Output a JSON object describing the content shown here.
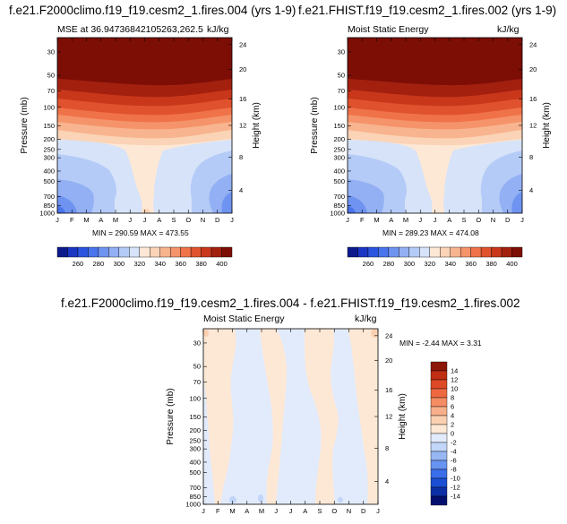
{
  "colors": {
    "scale_top": [
      "#0c1a8c",
      "#1b36c2",
      "#2b55e0",
      "#4a74ec",
      "#6f93f0",
      "#93b0f4",
      "#b5cbf7",
      "#d6e3f9",
      "#fde8d6",
      "#fbd3b6",
      "#f8b48e",
      "#f5936a",
      "#f07249",
      "#e0522e",
      "#c9371b",
      "#a3200f",
      "#7d0e06"
    ],
    "scale_diff": [
      "#040f6d",
      "#0c2fa6",
      "#1a4fd4",
      "#3a6eea",
      "#6893f0",
      "#97b6f4",
      "#c1d6f9",
      "#e2ebfb",
      "#fde8d6",
      "#fbd0b1",
      "#f8b08a",
      "#f48d64",
      "#ee6941",
      "#dd4a25",
      "#c02e13",
      "#8c1608"
    ]
  },
  "panels": [
    {
      "id": "left",
      "title": "f.e21.F2000climo.f19_f19.cesm2_1.fires.004 (yrs 1-9)",
      "subtitle_left": "MSE at 36.94736842105263,262.5",
      "subtitle_right": "kJ/kg",
      "minmax": "MIN = 290.59  MAX = 473.55"
    },
    {
      "id": "right",
      "title": "f.e21.FHIST.f19_f19.cesm2_1.fires.002 (yrs 1-9)",
      "subtitle_left": "Moist Static Energy",
      "subtitle_right": "kJ/kg",
      "minmax": "MIN = 289.23  MAX = 474.08"
    },
    {
      "id": "diff",
      "title": "f.e21.F2000climo.f19_f19.cesm2_1.fires.004 - f.e21.FHIST.f19_f19.cesm2_1.fires.002",
      "subtitle_left": "Moist Static Energy",
      "subtitle_right": "kJ/kg",
      "minmax": "MIN =  -2.44  MAX =   3.31"
    }
  ],
  "chart_data": [
    {
      "type": "heatmap",
      "title": "f.e21.F2000climo.f19_f19.cesm2_1.fires.004 (yrs 1-9)",
      "subtitle": "MSE at 36.94736842105263,262.5",
      "units": "kJ/kg",
      "x_ticks": [
        "J",
        "F",
        "M",
        "A",
        "M",
        "J",
        "J",
        "A",
        "S",
        "O",
        "N",
        "D",
        "J"
      ],
      "y_ticks": [
        "30",
        "50",
        "70",
        "100",
        "150",
        "200",
        "250",
        "300",
        "400",
        "500",
        "700",
        "850",
        "1000"
      ],
      "y2_ticks": [
        "24",
        "20",
        "16",
        "12",
        "8",
        "4"
      ],
      "ylabel": "Pressure (mb)",
      "y2label": "Height (km)",
      "min": 290.59,
      "max": 473.55,
      "contour_levels": [
        260,
        270,
        280,
        290,
        300,
        310,
        320,
        330,
        340,
        350,
        360,
        370,
        380,
        390,
        400
      ]
    },
    {
      "type": "heatmap",
      "title": "f.e21.FHIST.f19_f19.cesm2_1.fires.002 (yrs 1-9)",
      "subtitle": "Moist Static Energy",
      "units": "kJ/kg",
      "x_ticks": [
        "J",
        "F",
        "M",
        "A",
        "M",
        "J",
        "J",
        "A",
        "S",
        "O",
        "N",
        "D",
        "J"
      ],
      "y_ticks": [
        "30",
        "50",
        "70",
        "100",
        "150",
        "200",
        "250",
        "300",
        "400",
        "500",
        "700",
        "850",
        "1000"
      ],
      "y2_ticks": [
        "24",
        "20",
        "16",
        "12",
        "8",
        "4"
      ],
      "ylabel": "Pressure (mb)",
      "y2label": "Height (km)",
      "min": 289.23,
      "max": 474.08,
      "contour_levels": [
        260,
        270,
        280,
        290,
        300,
        310,
        320,
        330,
        340,
        350,
        360,
        370,
        380,
        390,
        400
      ]
    },
    {
      "type": "heatmap",
      "title": "f.e21.F2000climo.f19_f19.cesm2_1.fires.004 - f.e21.FHIST.f19_f19.cesm2_1.fires.002",
      "subtitle": "Moist Static Energy",
      "units": "kJ/kg",
      "x_ticks": [
        "J",
        "F",
        "M",
        "A",
        "M",
        "J",
        "J",
        "A",
        "S",
        "O",
        "N",
        "D",
        "J"
      ],
      "y_ticks": [
        "30",
        "50",
        "70",
        "100",
        "150",
        "200",
        "250",
        "300",
        "400",
        "500",
        "700",
        "850",
        "1000"
      ],
      "y2_ticks": [
        "24",
        "20",
        "16",
        "12",
        "8",
        "4"
      ],
      "ylabel": "Pressure (mb)",
      "y2label": "Height (km)",
      "min": -2.44,
      "max": 3.31,
      "contour_levels": [
        -14,
        -12,
        -10,
        -8,
        -6,
        -4,
        -2,
        0,
        2,
        4,
        6,
        8,
        10,
        12,
        14
      ]
    }
  ],
  "colorbar_top": {
    "labels": [
      "260",
      "280",
      "300",
      "320",
      "340",
      "360",
      "380",
      "400"
    ]
  },
  "colorbar_diff": {
    "labels": [
      "14",
      "12",
      "10",
      "8",
      "6",
      "4",
      "2",
      "0",
      "-2",
      "-4",
      "-6",
      "-8",
      "-10",
      "-12",
      "-14"
    ]
  }
}
